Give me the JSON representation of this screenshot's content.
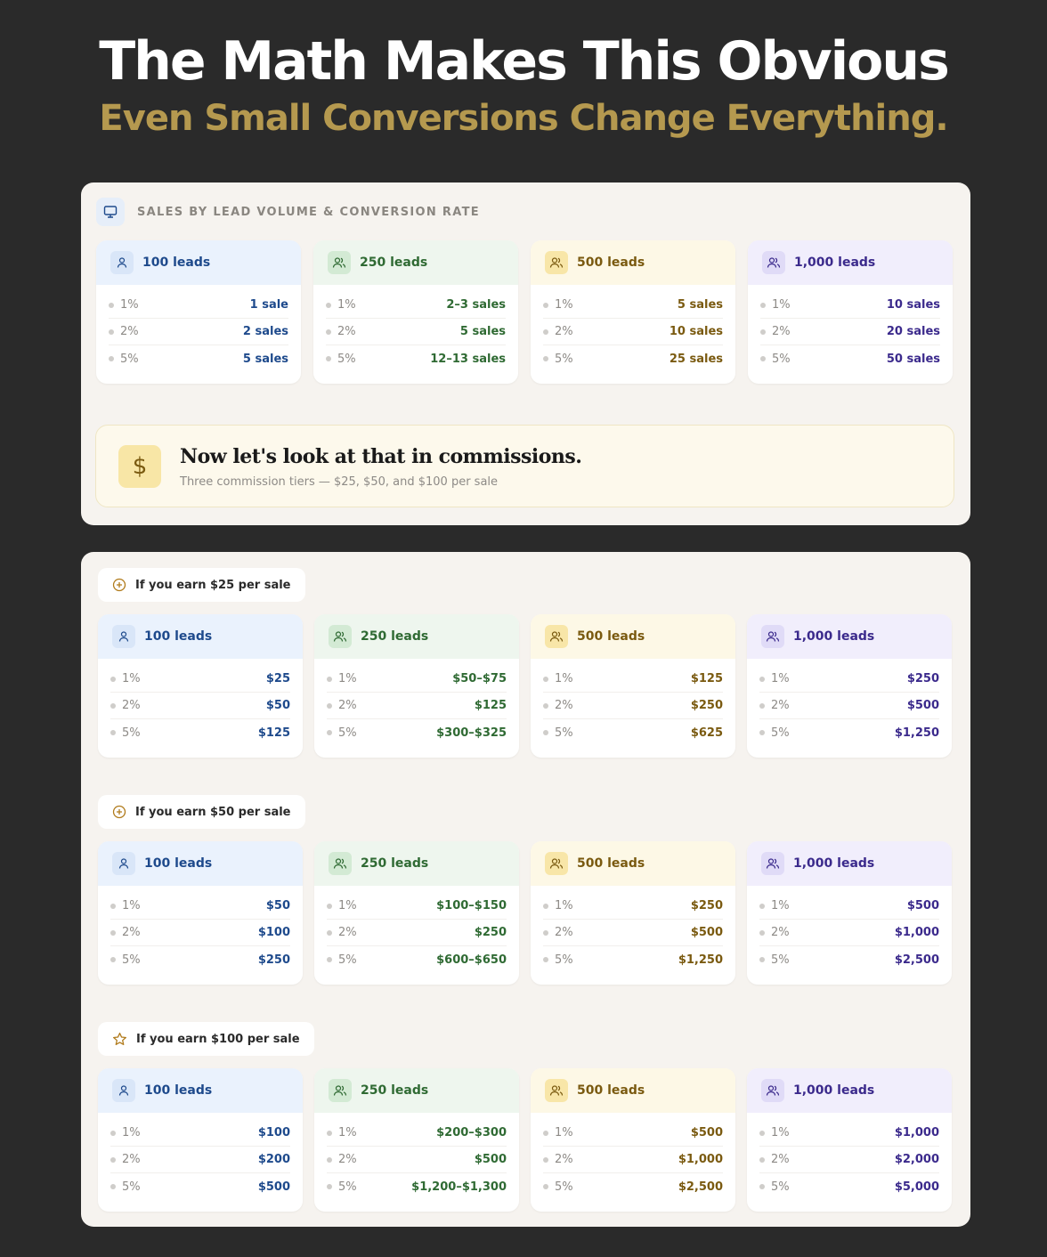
{
  "header": {
    "title": "The Math Makes This Obvious",
    "subtitle": "Even Small Conversions Change Everything."
  },
  "colors": {
    "background": "#2a2a2a",
    "subtitle": "#b5994f",
    "panel": "#f6f3ef"
  },
  "themes": [
    {
      "header_bg": "#eaf2fd",
      "icon_bg": "#d9e6f8",
      "text": "#1e4a8c",
      "icon": "person-icon"
    },
    {
      "header_bg": "#eef6ee",
      "icon_bg": "#d3ead4",
      "text": "#2f6a33",
      "icon": "users-icon"
    },
    {
      "header_bg": "#fdf8e6",
      "icon_bg": "#f8e6a8",
      "text": "#7a5a10",
      "icon": "users-icon"
    },
    {
      "header_bg": "#f1eefc",
      "icon_bg": "#e0dbf7",
      "text": "#3b2a8c",
      "icon": "users-icon"
    }
  ],
  "sales_panel": {
    "icon": "monitor-icon",
    "title": "SALES BY LEAD VOLUME & CONVERSION RATE",
    "cards": [
      {
        "label": "100 leads",
        "rows": [
          {
            "rate": "1%",
            "value": "1 sale"
          },
          {
            "rate": "2%",
            "value": "2 sales"
          },
          {
            "rate": "5%",
            "value": "5 sales"
          }
        ]
      },
      {
        "label": "250 leads",
        "rows": [
          {
            "rate": "1%",
            "value": "2–3 sales"
          },
          {
            "rate": "2%",
            "value": "5 sales"
          },
          {
            "rate": "5%",
            "value": "12–13 sales"
          }
        ]
      },
      {
        "label": "500 leads",
        "rows": [
          {
            "rate": "1%",
            "value": "5 sales"
          },
          {
            "rate": "2%",
            "value": "10 sales"
          },
          {
            "rate": "5%",
            "value": "25 sales"
          }
        ]
      },
      {
        "label": "1,000 leads",
        "rows": [
          {
            "rate": "1%",
            "value": "10 sales"
          },
          {
            "rate": "2%",
            "value": "20 sales"
          },
          {
            "rate": "5%",
            "value": "50 sales"
          }
        ]
      }
    ],
    "banner": {
      "icon": "dollar-icon",
      "icon_text": "$",
      "title": "Now let's look at that in commissions.",
      "subtitle": "Three commission tiers — $25, $50, and $100 per sale"
    }
  },
  "commission_sections": [
    {
      "label": "If you earn $25 per sale",
      "icon": "plus-circle-icon",
      "cards": [
        {
          "label": "100 leads",
          "rows": [
            {
              "rate": "1%",
              "value": "$25"
            },
            {
              "rate": "2%",
              "value": "$50"
            },
            {
              "rate": "5%",
              "value": "$125"
            }
          ]
        },
        {
          "label": "250 leads",
          "rows": [
            {
              "rate": "1%",
              "value": "$50–$75"
            },
            {
              "rate": "2%",
              "value": "$125"
            },
            {
              "rate": "5%",
              "value": "$300–$325"
            }
          ]
        },
        {
          "label": "500 leads",
          "rows": [
            {
              "rate": "1%",
              "value": "$125"
            },
            {
              "rate": "2%",
              "value": "$250"
            },
            {
              "rate": "5%",
              "value": "$625"
            }
          ]
        },
        {
          "label": "1,000 leads",
          "rows": [
            {
              "rate": "1%",
              "value": "$250"
            },
            {
              "rate": "2%",
              "value": "$500"
            },
            {
              "rate": "5%",
              "value": "$1,250"
            }
          ]
        }
      ]
    },
    {
      "label": "If you earn $50 per sale",
      "icon": "plus-circle-icon",
      "cards": [
        {
          "label": "100 leads",
          "rows": [
            {
              "rate": "1%",
              "value": "$50"
            },
            {
              "rate": "2%",
              "value": "$100"
            },
            {
              "rate": "5%",
              "value": "$250"
            }
          ]
        },
        {
          "label": "250 leads",
          "rows": [
            {
              "rate": "1%",
              "value": "$100–$150"
            },
            {
              "rate": "2%",
              "value": "$250"
            },
            {
              "rate": "5%",
              "value": "$600–$650"
            }
          ]
        },
        {
          "label": "500 leads",
          "rows": [
            {
              "rate": "1%",
              "value": "$250"
            },
            {
              "rate": "2%",
              "value": "$500"
            },
            {
              "rate": "5%",
              "value": "$1,250"
            }
          ]
        },
        {
          "label": "1,000 leads",
          "rows": [
            {
              "rate": "1%",
              "value": "$500"
            },
            {
              "rate": "2%",
              "value": "$1,000"
            },
            {
              "rate": "5%",
              "value": "$2,500"
            }
          ]
        }
      ]
    },
    {
      "label": "If you earn $100 per sale",
      "icon": "star-icon",
      "cards": [
        {
          "label": "100 leads",
          "rows": [
            {
              "rate": "1%",
              "value": "$100"
            },
            {
              "rate": "2%",
              "value": "$200"
            },
            {
              "rate": "5%",
              "value": "$500"
            }
          ]
        },
        {
          "label": "250 leads",
          "rows": [
            {
              "rate": "1%",
              "value": "$200–$300"
            },
            {
              "rate": "2%",
              "value": "$500"
            },
            {
              "rate": "5%",
              "value": "$1,200–$1,300"
            }
          ]
        },
        {
          "label": "500 leads",
          "rows": [
            {
              "rate": "1%",
              "value": "$500"
            },
            {
              "rate": "2%",
              "value": "$1,000"
            },
            {
              "rate": "5%",
              "value": "$2,500"
            }
          ]
        },
        {
          "label": "1,000 leads",
          "rows": [
            {
              "rate": "1%",
              "value": "$1,000"
            },
            {
              "rate": "2%",
              "value": "$2,000"
            },
            {
              "rate": "5%",
              "value": "$5,000"
            }
          ]
        }
      ]
    }
  ]
}
